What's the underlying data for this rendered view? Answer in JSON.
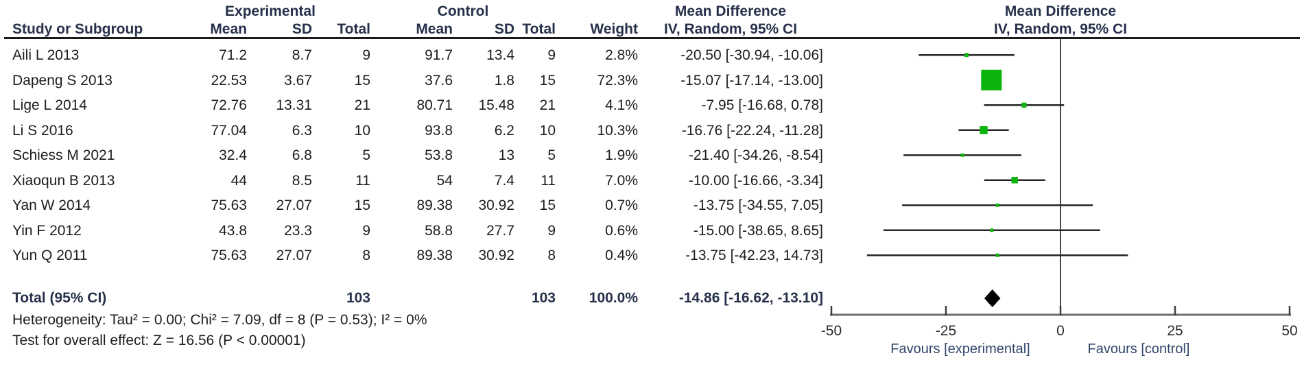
{
  "colors": {
    "marker_green": "#0cb50c",
    "diamond_black": "#000000",
    "header_navy": "#26304a",
    "body_text": "#1d1d1d",
    "axis_gray": "#6e6e6e"
  },
  "table": {
    "group_headers": {
      "experimental": "Experimental",
      "control": "Control",
      "mean_difference": "Mean Difference",
      "mean_difference_plot": "Mean Difference"
    },
    "col_headers": {
      "study": "Study or Subgroup",
      "mean": "Mean",
      "sd": "SD",
      "total": "Total",
      "weight": "Weight",
      "ci": "IV, Random, 95% CI",
      "ci_plot": "IV, Random, 95% CI"
    }
  },
  "chart_data": {
    "type": "forest",
    "effect_measure": "Mean Difference",
    "model": "IV, Random, 95% CI",
    "x_axis": {
      "min": -50,
      "max": 50,
      "ticks": [
        -50,
        -25,
        0,
        25,
        50
      ],
      "label_left": "Favours [experimental]",
      "label_right": "Favours [control]"
    },
    "studies": [
      {
        "name": "Aili L 2013",
        "exp_mean": 71.2,
        "exp_sd": 8.7,
        "exp_total": 9,
        "ctl_mean": 91.7,
        "ctl_sd": 13.4,
        "ctl_total": 9,
        "weight": "2.8%",
        "md": -20.5,
        "ci_low": -30.94,
        "ci_high": -10.06,
        "ci_text": "-20.50 [-30.94, -10.06]"
      },
      {
        "name": "Dapeng S 2013",
        "exp_mean": 22.53,
        "exp_sd": 3.67,
        "exp_total": 15,
        "ctl_mean": 37.6,
        "ctl_sd": 1.8,
        "ctl_total": 15,
        "weight": "72.3%",
        "md": -15.07,
        "ci_low": -17.14,
        "ci_high": -13.0,
        "ci_text": "-15.07 [-17.14, -13.00]"
      },
      {
        "name": "Lige L 2014",
        "exp_mean": 72.76,
        "exp_sd": 13.31,
        "exp_total": 21,
        "ctl_mean": 80.71,
        "ctl_sd": 15.48,
        "ctl_total": 21,
        "weight": "4.1%",
        "md": -7.95,
        "ci_low": -16.68,
        "ci_high": 0.78,
        "ci_text": "-7.95 [-16.68, 0.78]"
      },
      {
        "name": "Li S 2016",
        "exp_mean": 77.04,
        "exp_sd": 6.3,
        "exp_total": 10,
        "ctl_mean": 93.8,
        "ctl_sd": 6.2,
        "ctl_total": 10,
        "weight": "10.3%",
        "md": -16.76,
        "ci_low": -22.24,
        "ci_high": -11.28,
        "ci_text": "-16.76 [-22.24, -11.28]"
      },
      {
        "name": "Schiess M 2021",
        "exp_mean": 32.4,
        "exp_sd": 6.8,
        "exp_total": 5,
        "ctl_mean": 53.8,
        "ctl_sd": 13,
        "ctl_total": 5,
        "weight": "1.9%",
        "md": -21.4,
        "ci_low": -34.26,
        "ci_high": -8.54,
        "ci_text": "-21.40 [-34.26, -8.54]"
      },
      {
        "name": "Xiaoqun B 2013",
        "exp_mean": 44,
        "exp_sd": 8.5,
        "exp_total": 11,
        "ctl_mean": 54,
        "ctl_sd": 7.4,
        "ctl_total": 11,
        "weight": "7.0%",
        "md": -10.0,
        "ci_low": -16.66,
        "ci_high": -3.34,
        "ci_text": "-10.00 [-16.66, -3.34]"
      },
      {
        "name": "Yan W  2014",
        "exp_mean": 75.63,
        "exp_sd": 27.07,
        "exp_total": 15,
        "ctl_mean": 89.38,
        "ctl_sd": 30.92,
        "ctl_total": 15,
        "weight": "0.7%",
        "md": -13.75,
        "ci_low": -34.55,
        "ci_high": 7.05,
        "ci_text": "-13.75 [-34.55, 7.05]"
      },
      {
        "name": "Yin F 2012",
        "exp_mean": 43.8,
        "exp_sd": 23.3,
        "exp_total": 9,
        "ctl_mean": 58.8,
        "ctl_sd": 27.7,
        "ctl_total": 9,
        "weight": "0.6%",
        "md": -15.0,
        "ci_low": -38.65,
        "ci_high": 8.65,
        "ci_text": "-15.00 [-38.65, 8.65]"
      },
      {
        "name": "Yun Q 2011",
        "exp_mean": 75.63,
        "exp_sd": 27.07,
        "exp_total": 8,
        "ctl_mean": 89.38,
        "ctl_sd": 30.92,
        "ctl_total": 8,
        "weight": "0.4%",
        "md": -13.75,
        "ci_low": -42.23,
        "ci_high": 14.73,
        "ci_text": "-13.75 [-42.23, 14.73]"
      }
    ],
    "total": {
      "label": "Total (95% CI)",
      "exp_total": 103,
      "ctl_total": 103,
      "weight": "100.0%",
      "md": -14.86,
      "ci_low": -16.62,
      "ci_high": -13.1,
      "ci_text": "-14.86 [-16.62, -13.10]"
    },
    "heterogeneity": "Heterogeneity: Tau² = 0.00; Chi² = 7.09, df = 8 (P = 0.53); I² = 0%",
    "overall_effect": "Test for overall effect: Z = 16.56 (P < 0.00001)"
  }
}
